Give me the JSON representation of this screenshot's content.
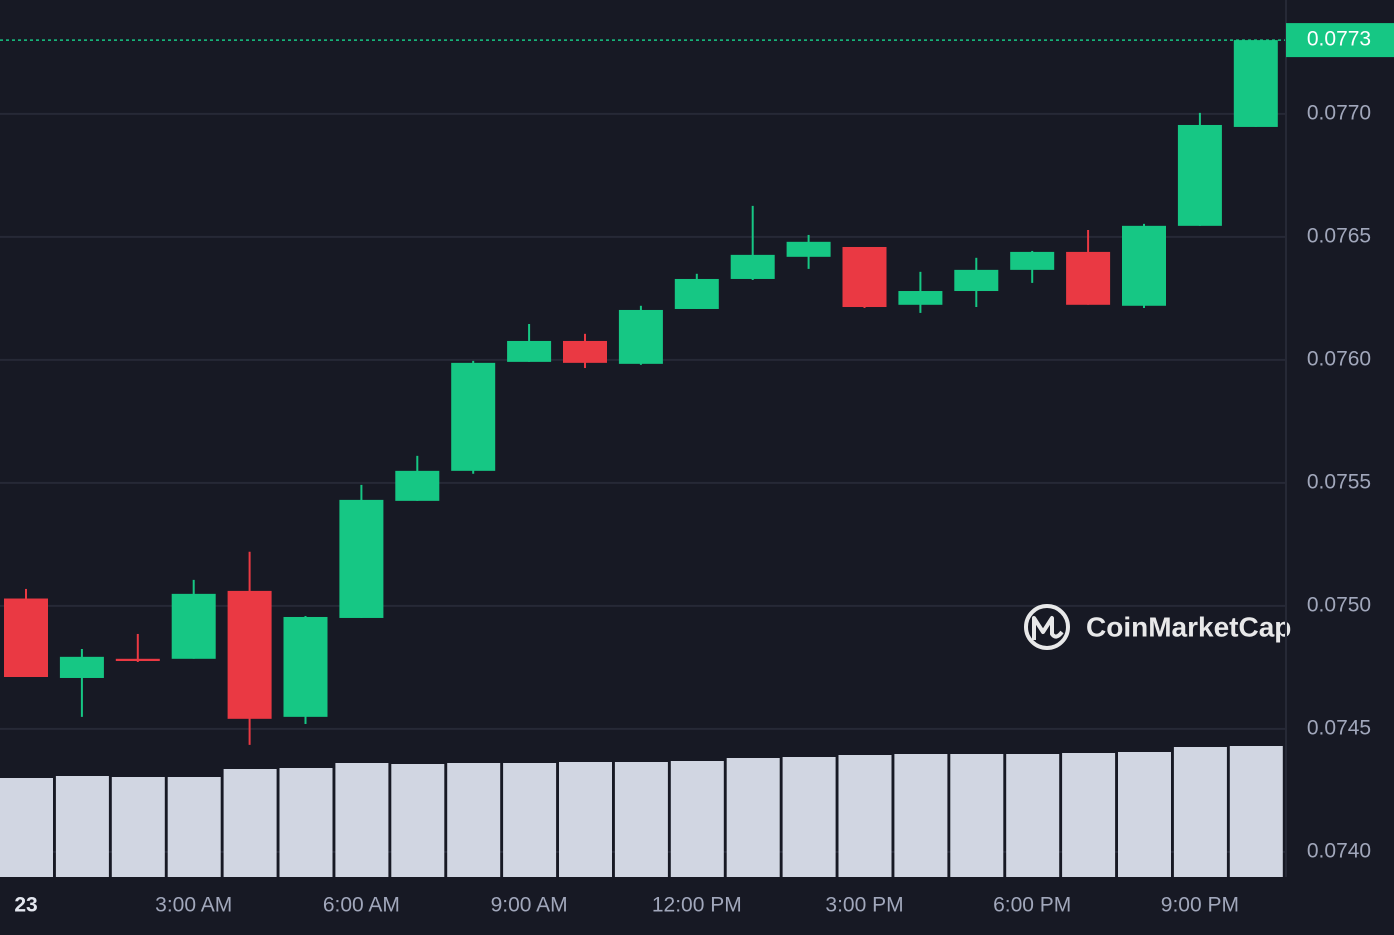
{
  "chart_data": {
    "type": "candlestick",
    "watermark": "CoinMarketCap",
    "categories": [
      "23",
      null,
      null,
      "3:00 AM",
      null,
      null,
      "6:00 AM",
      null,
      null,
      "9:00 AM",
      null,
      null,
      "12:00 PM",
      null,
      null,
      "3:00 PM",
      null,
      null,
      "6:00 PM",
      null,
      null,
      "9:00 PM",
      null
    ],
    "open": [
      0.07503,
      0.074707,
      0.074785,
      0.074785,
      0.075061,
      0.074549,
      0.074951,
      0.075427,
      0.075549,
      0.075992,
      0.076077,
      0.075984,
      0.076207,
      0.076329,
      0.076419,
      0.076459,
      0.076224,
      0.07628,
      0.076366,
      0.076439,
      0.07622,
      0.076545,
      0.076947
    ],
    "high": [
      0.075069,
      0.074825,
      0.074886,
      0.075106,
      0.07522,
      0.074959,
      0.075492,
      0.07561,
      0.075996,
      0.076146,
      0.076106,
      0.07622,
      0.07635,
      0.076626,
      0.076508,
      0.076459,
      0.076358,
      0.076415,
      0.076443,
      0.076528,
      0.076553,
      0.077004,
      0.0773
    ],
    "low": [
      0.074711,
      0.074549,
      0.074772,
      0.074785,
      0.074435,
      0.07452,
      0.074951,
      0.075427,
      0.075537,
      0.075992,
      0.075967,
      0.07598,
      0.076207,
      0.076325,
      0.07637,
      0.076211,
      0.076191,
      0.076215,
      0.076313,
      0.076224,
      0.076211,
      0.076545,
      0.076947
    ],
    "close": [
      0.074711,
      0.074793,
      0.074776,
      0.075049,
      0.074541,
      0.074955,
      0.075431,
      0.075549,
      0.075988,
      0.076077,
      0.075988,
      0.076203,
      0.076329,
      0.076427,
      0.07648,
      0.076215,
      0.07628,
      0.076366,
      0.076439,
      0.076224,
      0.076545,
      0.076955,
      0.0773
    ],
    "volume": [
      99,
      101,
      100,
      100,
      108,
      109,
      114,
      113,
      114,
      114,
      115,
      115,
      116,
      119,
      120,
      122,
      123,
      123,
      123,
      124,
      125,
      130,
      131
    ],
    "volume_lim": [
      0,
      250
    ],
    "up_color": "#16c784",
    "down_color": "#ea3943",
    "volume_color": "#d1d6e2",
    "ylim": [
      0.073898,
      0.077463
    ],
    "yticks": [
      {
        "value": 0.074,
        "label": "0.0740"
      },
      0.0745,
      {
        "value": 0.075,
        "label": "0.0750"
      },
      0.0755,
      {
        "value": 0.076,
        "label": "0.0760"
      },
      0.0765,
      {
        "value": 0.077,
        "label": "0.0770"
      }
    ],
    "grid": true
  }
}
